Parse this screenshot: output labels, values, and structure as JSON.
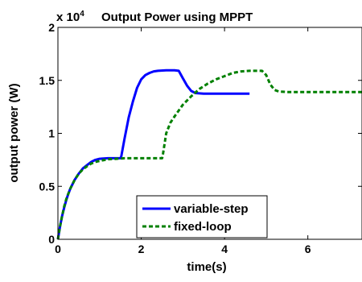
{
  "chart_data": {
    "type": "line",
    "title": "Output Power using MPPT",
    "exponent_label": "x 10",
    "exponent_power": "4",
    "xlabel": "time(s)",
    "ylabel": "output power (W)",
    "xlim": [
      0,
      7.3
    ],
    "ylim": [
      0,
      2
    ],
    "xticks": [
      0,
      2,
      4,
      6
    ],
    "xtick_labels": [
      "0",
      "2",
      "4",
      "6"
    ],
    "yticks": [
      0,
      0.5,
      1,
      1.5,
      2
    ],
    "ytick_labels": [
      "0",
      "0.5",
      "1",
      "1.5",
      "2"
    ],
    "grid": false,
    "legend_position": "bottom-center",
    "series": [
      {
        "name": "variable-step",
        "color": "#0000ff",
        "style": "solid",
        "x": [
          0,
          0.05,
          0.1,
          0.15,
          0.2,
          0.25,
          0.3,
          0.4,
          0.5,
          0.6,
          0.7,
          0.8,
          0.9,
          1.0,
          1.2,
          1.4,
          1.5,
          1.52,
          1.6,
          1.7,
          1.8,
          1.9,
          2.0,
          2.1,
          2.2,
          2.3,
          2.4,
          2.6,
          2.8,
          2.9,
          3.0,
          3.1,
          3.2,
          3.3,
          3.5,
          3.8,
          4.2,
          4.6
        ],
        "y": [
          0,
          0.12,
          0.22,
          0.3,
          0.37,
          0.43,
          0.48,
          0.56,
          0.62,
          0.67,
          0.7,
          0.73,
          0.75,
          0.76,
          0.765,
          0.765,
          0.765,
          0.78,
          0.95,
          1.15,
          1.3,
          1.43,
          1.51,
          1.55,
          1.57,
          1.585,
          1.59,
          1.595,
          1.595,
          1.59,
          1.52,
          1.45,
          1.4,
          1.38,
          1.375,
          1.375,
          1.375,
          1.375
        ]
      },
      {
        "name": "fixed-loop",
        "color": "#008000",
        "style": "dashed",
        "x": [
          0,
          0.05,
          0.1,
          0.15,
          0.2,
          0.3,
          0.4,
          0.5,
          0.6,
          0.7,
          0.8,
          0.9,
          1.0,
          1.2,
          1.4,
          1.6,
          1.8,
          2.0,
          2.2,
          2.4,
          2.5,
          2.52,
          2.6,
          2.7,
          2.8,
          3.0,
          3.2,
          3.4,
          3.6,
          3.8,
          4.0,
          4.2,
          4.4,
          4.6,
          4.8,
          4.9,
          5.0,
          5.1,
          5.2,
          5.3,
          5.5,
          6.0,
          6.5,
          7.0,
          7.3
        ],
        "y": [
          0,
          0.12,
          0.22,
          0.31,
          0.38,
          0.48,
          0.56,
          0.62,
          0.66,
          0.69,
          0.715,
          0.73,
          0.74,
          0.755,
          0.76,
          0.765,
          0.765,
          0.765,
          0.765,
          0.765,
          0.765,
          0.8,
          1.0,
          1.1,
          1.16,
          1.27,
          1.35,
          1.42,
          1.47,
          1.51,
          1.54,
          1.57,
          1.585,
          1.59,
          1.59,
          1.59,
          1.55,
          1.46,
          1.41,
          1.395,
          1.39,
          1.39,
          1.39,
          1.39,
          1.39
        ]
      }
    ]
  }
}
